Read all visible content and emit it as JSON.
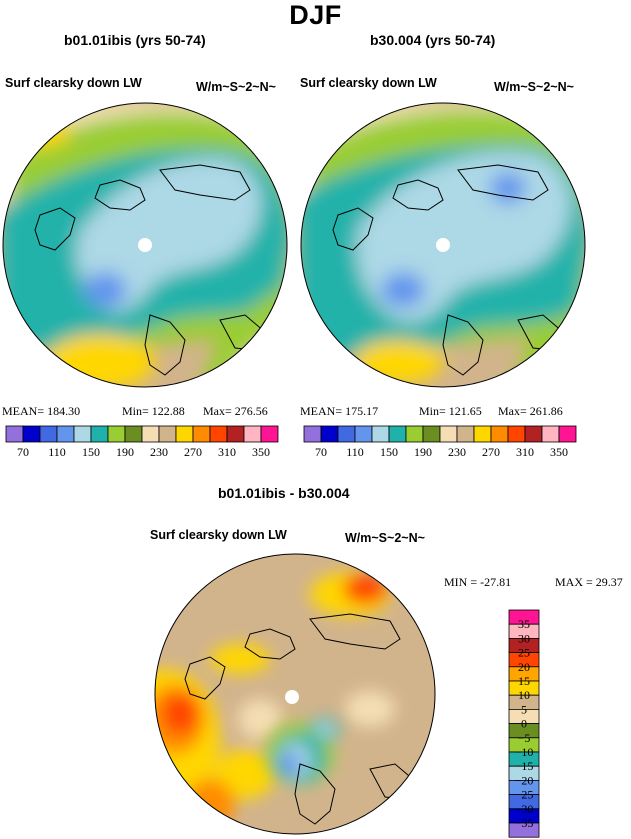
{
  "title": "DJF",
  "panels": [
    {
      "title": "b01.01ibis (yrs 50-74)",
      "variable": "Surf clearsky down LW",
      "units": "W/m~S~2~N~",
      "stats": {
        "mean": "MEAN= 184.30",
        "min": "Min= 122.88",
        "max": "Max= 276.56"
      }
    },
    {
      "title": "b30.004 (yrs 50-74)",
      "variable": "Surf clearsky down LW",
      "units": "W/m~S~2~N~",
      "stats": {
        "mean": "MEAN= 175.17",
        "min": "Min= 121.65",
        "max": "Max= 261.86"
      }
    },
    {
      "title": "b01.01ibis - b30.004",
      "variable": "Surf clearsky down LW",
      "units": "W/m~S~2~N~",
      "stats": {
        "min": "MIN = -27.81",
        "max": "MAX = 29.37"
      }
    }
  ],
  "chart_data": [
    {
      "type": "heatmap",
      "projection": "polar stereographic (north pole)",
      "title": "b01.01ibis (yrs 50-74)",
      "variable": "Surf clearsky down LW",
      "units": "W/m~S~2~N~",
      "mean": 184.3,
      "min": 122.88,
      "max": 276.56,
      "colorbar": {
        "orientation": "horizontal",
        "levels": [
          70,
          90,
          110,
          130,
          150,
          170,
          190,
          210,
          230,
          250,
          270,
          290,
          310,
          330,
          350
        ],
        "tick_labels": [
          "70",
          "110",
          "150",
          "190",
          "230",
          "270",
          "310",
          "350"
        ],
        "colors": [
          "#9370db",
          "#0000cd",
          "#4169e1",
          "#6495ed",
          "#add8e6",
          "#20b2aa",
          "#9acd32",
          "#6b8e23",
          "#f5deb3",
          "#d2b48c",
          "#ffd700",
          "#ff8c00",
          "#ff4500",
          "#b22222",
          "#ffb6c1",
          "#ff1493"
        ]
      }
    },
    {
      "type": "heatmap",
      "projection": "polar stereographic (north pole)",
      "title": "b30.004 (yrs 50-74)",
      "variable": "Surf clearsky down LW",
      "units": "W/m~S~2~N~",
      "mean": 175.17,
      "min": 121.65,
      "max": 261.86,
      "colorbar": {
        "orientation": "horizontal",
        "levels": [
          70,
          90,
          110,
          130,
          150,
          170,
          190,
          210,
          230,
          250,
          270,
          290,
          310,
          330,
          350
        ],
        "tick_labels": [
          "70",
          "110",
          "150",
          "190",
          "230",
          "270",
          "310",
          "350"
        ],
        "colors": [
          "#9370db",
          "#0000cd",
          "#4169e1",
          "#6495ed",
          "#add8e6",
          "#20b2aa",
          "#9acd32",
          "#6b8e23",
          "#f5deb3",
          "#d2b48c",
          "#ffd700",
          "#ff8c00",
          "#ff4500",
          "#b22222",
          "#ffb6c1",
          "#ff1493"
        ]
      }
    },
    {
      "type": "heatmap",
      "projection": "polar stereographic (north pole)",
      "title": "b01.01ibis - b30.004",
      "variable": "Surf clearsky down LW",
      "units": "W/m~S~2~N~",
      "min": -27.81,
      "max": 29.37,
      "colorbar": {
        "orientation": "vertical",
        "levels": [
          -35,
          -30,
          -25,
          -20,
          -15,
          -10,
          -5,
          0,
          5,
          10,
          15,
          20,
          25,
          30,
          35
        ],
        "tick_labels": [
          "35",
          "30",
          "25",
          "20",
          "15",
          "10",
          "5",
          "0",
          "−5",
          "−10",
          "−15",
          "−20",
          "−25",
          "−30",
          "−35"
        ],
        "colors": [
          "#9370db",
          "#0000cd",
          "#4169e1",
          "#6495ed",
          "#add8e6",
          "#20b2aa",
          "#9acd32",
          "#6b8e23",
          "#f5deb3",
          "#d2b48c",
          "#ffd700",
          "#ffa500",
          "#ff4500",
          "#b22222",
          "#ffb6c1",
          "#ff1493"
        ]
      }
    }
  ]
}
